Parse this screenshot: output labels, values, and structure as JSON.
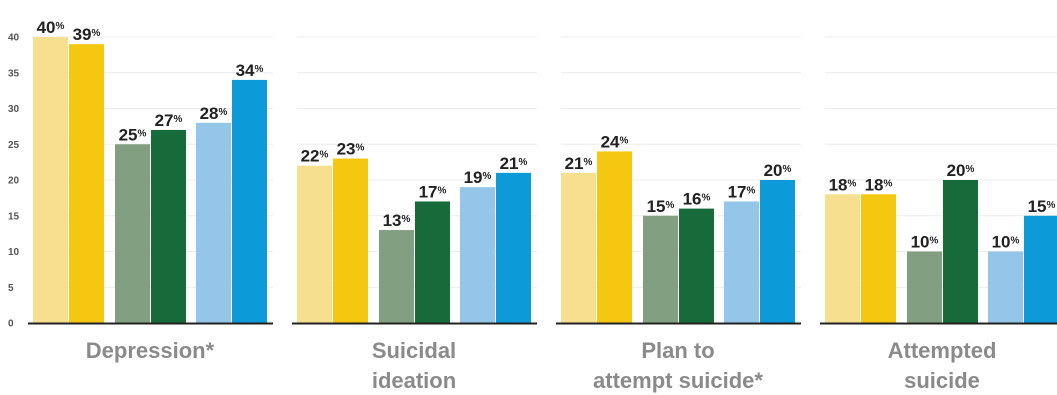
{
  "chart_data": {
    "type": "bar",
    "ylim": [
      0,
      40
    ],
    "yticks": [
      0,
      5,
      10,
      15,
      20,
      25,
      30,
      35,
      40
    ],
    "grid": true,
    "percent_suffix": "%",
    "categories": [
      {
        "label_lines": [
          "Depression*"
        ],
        "values": [
          40,
          39,
          25,
          27,
          28,
          34
        ],
        "labels": [
          "40",
          "39",
          "25",
          "27",
          "28",
          "34"
        ]
      },
      {
        "label_lines": [
          "Suicidal",
          "ideation"
        ],
        "values": [
          22,
          23,
          13,
          17,
          19,
          21
        ],
        "labels": [
          "22",
          "23",
          "13",
          "17",
          "19",
          "21"
        ]
      },
      {
        "label_lines": [
          "Plan to",
          "attempt suicide*"
        ],
        "values": [
          21,
          24,
          15,
          16,
          17,
          20
        ],
        "labels": [
          "21",
          "24",
          "15",
          "16",
          "17",
          "20"
        ]
      },
      {
        "label_lines": [
          "Attempted",
          "suicide"
        ],
        "values": [
          18,
          18,
          10,
          20,
          10,
          15
        ],
        "labels": [
          "18",
          "18",
          "10",
          "20",
          "10",
          "15"
        ]
      }
    ],
    "bar_colors": [
      "#f7df90",
      "#f4c710",
      "#82a081",
      "#176b3a",
      "#93c6e8",
      "#0c9bd8"
    ]
  }
}
